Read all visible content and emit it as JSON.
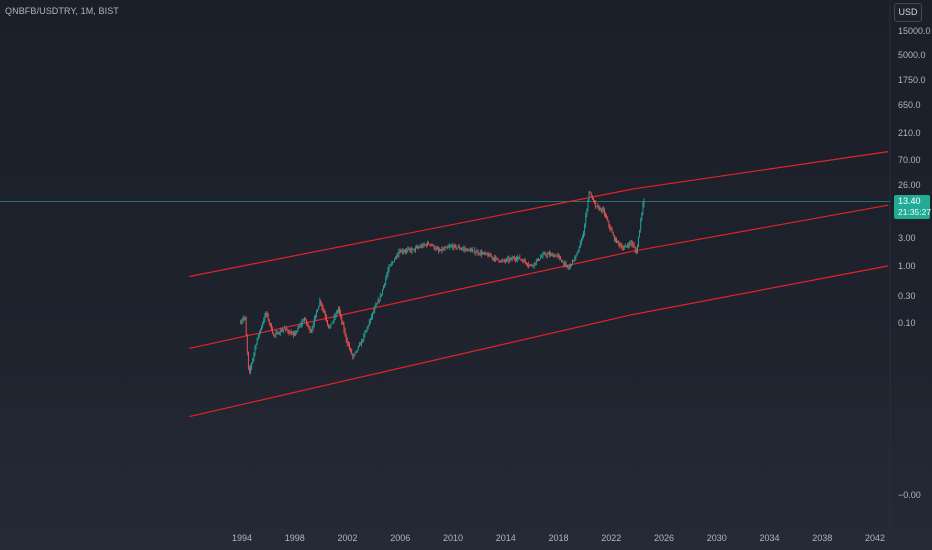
{
  "header": {
    "symbol": "QNBFB/USDTRY, 1M, BIST",
    "currency_button": "USD"
  },
  "price_badge": {
    "price": "13.40",
    "countdown": "21:35:27",
    "color": "#22ab94"
  },
  "colors": {
    "background": "#1e222d",
    "up_candle": "#26a69a",
    "down_candle": "#ef5350",
    "channel_lines": "#e0232b",
    "last_price_line": "#2f6b73",
    "axis_text": "#b2b5be"
  },
  "chart_data": {
    "type": "candlestick",
    "interval": "1M",
    "y_scale": "log",
    "y_tick_labels": [
      "15000.0",
      "5000.0",
      "1750.0",
      "650.0",
      "210.0",
      "70.00",
      "26.00",
      "3.00",
      "1.00",
      "0.30",
      "0.10",
      "−0.00"
    ],
    "x_tick_labels": [
      "1994",
      "1998",
      "2002",
      "2006",
      "2010",
      "2014",
      "2018",
      "2022",
      "2026",
      "2030",
      "2034",
      "2038",
      "2042"
    ],
    "last_price": 13.4,
    "price_path": [
      {
        "x": 1993.9,
        "y": 0.1
      },
      {
        "x": 1994.3,
        "y": 0.13
      },
      {
        "x": 1994.6,
        "y": 0.012
      },
      {
        "x": 1995.2,
        "y": 0.05
      },
      {
        "x": 1995.9,
        "y": 0.15
      },
      {
        "x": 1996.5,
        "y": 0.06
      },
      {
        "x": 1997.3,
        "y": 0.08
      },
      {
        "x": 1998.0,
        "y": 0.06
      },
      {
        "x": 1998.8,
        "y": 0.12
      },
      {
        "x": 1999.3,
        "y": 0.07
      },
      {
        "x": 2000.0,
        "y": 0.25
      },
      {
        "x": 2000.7,
        "y": 0.08
      },
      {
        "x": 2001.4,
        "y": 0.18
      },
      {
        "x": 2002.0,
        "y": 0.05
      },
      {
        "x": 2002.5,
        "y": 0.025
      },
      {
        "x": 2003.2,
        "y": 0.05
      },
      {
        "x": 2004.0,
        "y": 0.15
      },
      {
        "x": 2004.6,
        "y": 0.3
      },
      {
        "x": 2005.2,
        "y": 0.9
      },
      {
        "x": 2006.0,
        "y": 1.8
      },
      {
        "x": 2007.0,
        "y": 1.9
      },
      {
        "x": 2008.3,
        "y": 2.5
      },
      {
        "x": 2009.0,
        "y": 1.8
      },
      {
        "x": 2010.0,
        "y": 2.2
      },
      {
        "x": 2011.2,
        "y": 1.9
      },
      {
        "x": 2012.5,
        "y": 1.6
      },
      {
        "x": 2013.8,
        "y": 1.2
      },
      {
        "x": 2015.0,
        "y": 1.4
      },
      {
        "x": 2016.0,
        "y": 1.0
      },
      {
        "x": 2017.0,
        "y": 1.6
      },
      {
        "x": 2018.0,
        "y": 1.5
      },
      {
        "x": 2018.8,
        "y": 0.9
      },
      {
        "x": 2019.5,
        "y": 1.6
      },
      {
        "x": 2020.0,
        "y": 4.0
      },
      {
        "x": 2020.4,
        "y": 20.0
      },
      {
        "x": 2020.9,
        "y": 11.0
      },
      {
        "x": 2021.5,
        "y": 9.0
      },
      {
        "x": 2022.3,
        "y": 3.0
      },
      {
        "x": 2023.0,
        "y": 2.0
      },
      {
        "x": 2023.6,
        "y": 2.6
      },
      {
        "x": 2024.0,
        "y": 1.7
      },
      {
        "x": 2024.5,
        "y": 13.4
      }
    ],
    "channel_lines": [
      {
        "name": "upper",
        "points": [
          {
            "x": 1990.0,
            "y": 0.65
          },
          {
            "x": 2023.6,
            "y": 22.0
          },
          {
            "x": 2043.0,
            "y": 100.0
          }
        ]
      },
      {
        "name": "middle",
        "points": [
          {
            "x": 1990.0,
            "y": 0.036
          },
          {
            "x": 2023.6,
            "y": 1.8
          },
          {
            "x": 2043.0,
            "y": 11.5
          }
        ]
      },
      {
        "name": "lower",
        "points": [
          {
            "x": 1990.0,
            "y": 0.0023
          },
          {
            "x": 2023.6,
            "y": 0.14
          },
          {
            "x": 2043.0,
            "y": 1.0
          }
        ]
      }
    ]
  }
}
